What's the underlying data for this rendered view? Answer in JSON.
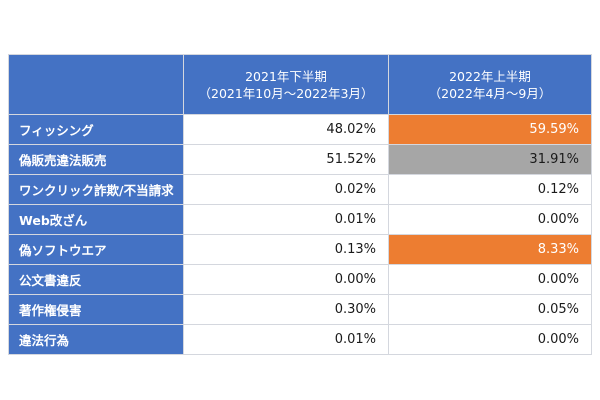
{
  "colors": {
    "header_bg": "#4472c4",
    "highlight_orange": "#ed7d31",
    "highlight_gray": "#a6a6a6"
  },
  "table": {
    "columns": [
      {
        "title": "2021年下半期",
        "subtitle": "（2021年10月～2022年3月）"
      },
      {
        "title": "2022年上半期",
        "subtitle": "（2022年4月～9月）"
      }
    ],
    "rows": [
      {
        "label": "フィッシング",
        "v1": "48.02%",
        "v2": "59.59%",
        "v2_highlight": "orange"
      },
      {
        "label": "偽販売違法販売",
        "v1": "51.52%",
        "v2": "31.91%",
        "v2_highlight": "gray"
      },
      {
        "label": "ワンクリック詐欺/不当請求",
        "v1": "0.02%",
        "v2": "0.12%",
        "v2_highlight": ""
      },
      {
        "label": "Web改ざん",
        "v1": "0.01%",
        "v2": "0.00%",
        "v2_highlight": ""
      },
      {
        "label": "偽ソフトウエア",
        "v1": "0.13%",
        "v2": "8.33%",
        "v2_highlight": "orange"
      },
      {
        "label": "公文書違反",
        "v1": "0.00%",
        "v2": "0.00%",
        "v2_highlight": ""
      },
      {
        "label": "著作権侵害",
        "v1": "0.30%",
        "v2": "0.05%",
        "v2_highlight": ""
      },
      {
        "label": "違法行為",
        "v1": "0.01%",
        "v2": "0.00%",
        "v2_highlight": ""
      }
    ]
  }
}
